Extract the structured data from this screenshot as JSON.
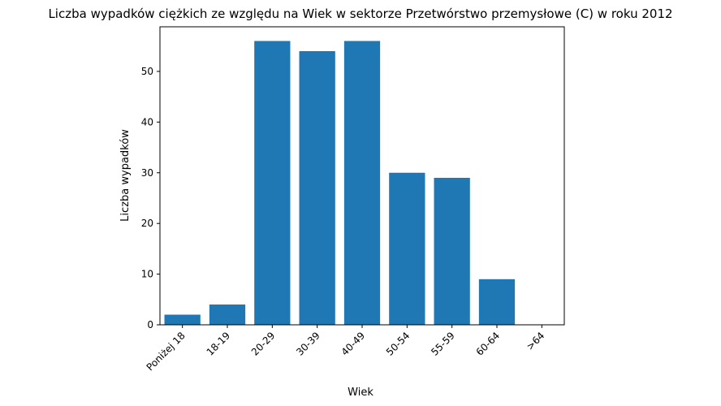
{
  "chart_data": {
    "type": "bar",
    "title": "Liczba wypadków ciężkich ze względu na Wiek w sektorze Przetwórstwo przemysłowe (C)   w roku 2012",
    "xlabel": "Wiek",
    "ylabel": "Liczba wypadków",
    "categories": [
      "Poniżej 18",
      "18-19",
      "20-29",
      "30-39",
      "40-49",
      "50-54",
      "55-59",
      "60-64",
      ">64"
    ],
    "values": [
      2,
      4,
      56,
      54,
      56,
      30,
      29,
      9,
      0
    ],
    "ylim": [
      0,
      58.8
    ],
    "yticks": [
      0,
      10,
      20,
      30,
      40,
      50
    ],
    "bar_color": "#1f77b4",
    "grid": false,
    "legend": "none"
  }
}
